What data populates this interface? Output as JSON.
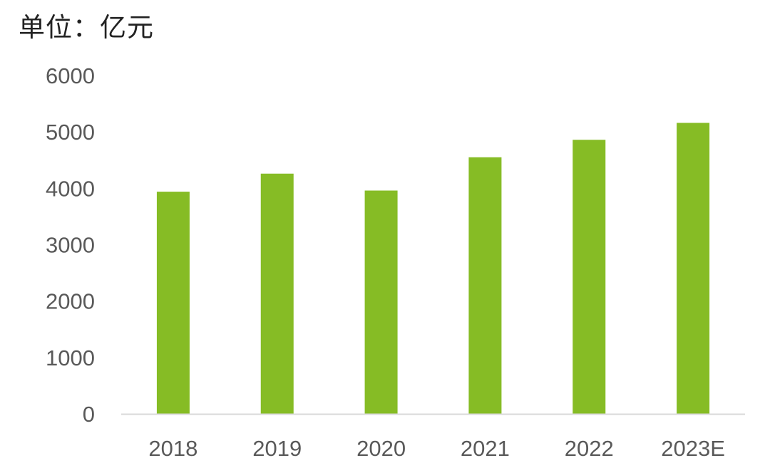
{
  "chart_data": {
    "type": "bar",
    "title": "",
    "unit_label": "单位：亿元",
    "xlabel": "",
    "ylabel": "",
    "categories": [
      "2018",
      "2019",
      "2020",
      "2021",
      "2022",
      "2023E"
    ],
    "values": [
      3940,
      4260,
      3960,
      4550,
      4860,
      5160
    ],
    "ylim": [
      0,
      6000
    ],
    "yticks": [
      0,
      1000,
      2000,
      3000,
      4000,
      5000,
      6000
    ],
    "grid": false,
    "legend": "none",
    "bar_color": "#86bc25",
    "axis_color": "#d9d9d9"
  }
}
